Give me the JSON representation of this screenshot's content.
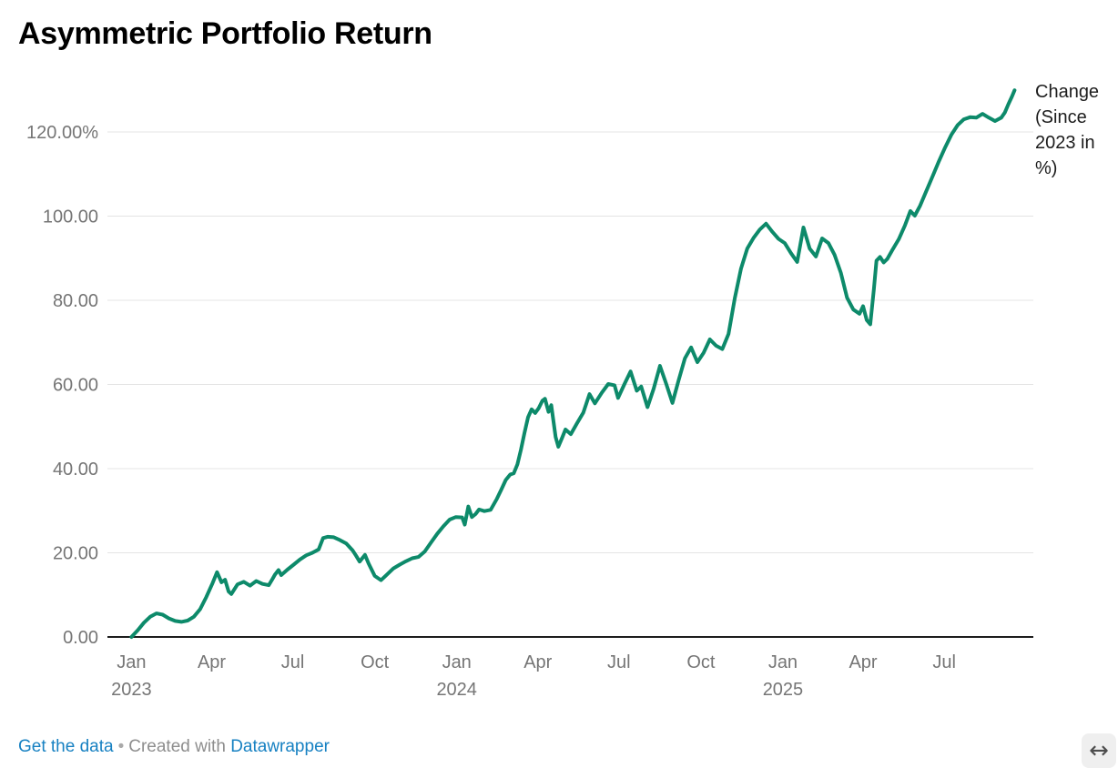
{
  "header": {
    "title": "Asymmetric Portfolio Return"
  },
  "legend": {
    "label": "Change (Since 2023 in %)"
  },
  "footer": {
    "get_data_label": "Get the data",
    "separator": "•",
    "created_with_label": "Created with",
    "brand_label": "Datawrapper",
    "resize_icon": "↔"
  },
  "colors": {
    "line": "#0d8a6a",
    "grid": "#e4e4e4",
    "axis_baseline": "#1c1c1c",
    "tick_label": "#757575",
    "legend_text": "#1c1c1c",
    "link": "#1781c2",
    "footer_text": "#8e8e8e",
    "resize_bg": "#efefef",
    "resize_icon": "#4d4d4d",
    "background": "#ffffff"
  },
  "chart_data": {
    "type": "line",
    "title": "Asymmetric Portfolio Return",
    "series_name": "Change (Since 2023 in %)",
    "xlabel": "",
    "ylabel": "",
    "grid": true,
    "legend_position": "right-of-line-end",
    "ylim": [
      0,
      132
    ],
    "x_domain": [
      "2022-12-05",
      "2025-10-09"
    ],
    "y_ticks": [
      {
        "value": 0,
        "label": "0.00"
      },
      {
        "value": 20,
        "label": "20.00"
      },
      {
        "value": 40,
        "label": "40.00"
      },
      {
        "value": 60,
        "label": "60.00"
      },
      {
        "value": 80,
        "label": "80.00"
      },
      {
        "value": 100,
        "label": "100.00"
      },
      {
        "value": 120,
        "label": "120.00%"
      }
    ],
    "x_ticks": [
      {
        "date": "2023-01-01",
        "label": "Jan",
        "year": "2023"
      },
      {
        "date": "2023-04-01",
        "label": "Apr",
        "year": ""
      },
      {
        "date": "2023-07-01",
        "label": "Jul",
        "year": ""
      },
      {
        "date": "2023-10-01",
        "label": "Oct",
        "year": ""
      },
      {
        "date": "2024-01-01",
        "label": "Jan",
        "year": "2024"
      },
      {
        "date": "2024-04-01",
        "label": "Apr",
        "year": ""
      },
      {
        "date": "2024-07-01",
        "label": "Jul",
        "year": ""
      },
      {
        "date": "2024-10-01",
        "label": "Oct",
        "year": ""
      },
      {
        "date": "2025-01-01",
        "label": "Jan",
        "year": "2025"
      },
      {
        "date": "2025-04-01",
        "label": "Apr",
        "year": ""
      },
      {
        "date": "2025-07-01",
        "label": "Jul",
        "year": ""
      }
    ],
    "points": [
      [
        "2023-01-01",
        0.0
      ],
      [
        "2023-01-08",
        1.6
      ],
      [
        "2023-01-15",
        3.4
      ],
      [
        "2023-01-22",
        4.8
      ],
      [
        "2023-01-29",
        5.6
      ],
      [
        "2023-02-05",
        5.3
      ],
      [
        "2023-02-12",
        4.4
      ],
      [
        "2023-02-19",
        3.8
      ],
      [
        "2023-02-26",
        3.6
      ],
      [
        "2023-03-05",
        3.9
      ],
      [
        "2023-03-12",
        4.8
      ],
      [
        "2023-03-19",
        6.6
      ],
      [
        "2023-03-26",
        9.5
      ],
      [
        "2023-04-02",
        12.8
      ],
      [
        "2023-04-07",
        15.4
      ],
      [
        "2023-04-12",
        13.0
      ],
      [
        "2023-04-16",
        13.6
      ],
      [
        "2023-04-20",
        10.8
      ],
      [
        "2023-04-23",
        10.2
      ],
      [
        "2023-04-30",
        12.5
      ],
      [
        "2023-05-07",
        13.1
      ],
      [
        "2023-05-14",
        12.2
      ],
      [
        "2023-05-21",
        13.3
      ],
      [
        "2023-05-28",
        12.6
      ],
      [
        "2023-06-04",
        12.3
      ],
      [
        "2023-06-08",
        13.7
      ],
      [
        "2023-06-11",
        14.8
      ],
      [
        "2023-06-15",
        15.9
      ],
      [
        "2023-06-18",
        14.7
      ],
      [
        "2023-06-25",
        16.0
      ],
      [
        "2023-07-02",
        17.2
      ],
      [
        "2023-07-09",
        18.4
      ],
      [
        "2023-07-16",
        19.4
      ],
      [
        "2023-07-23",
        20.0
      ],
      [
        "2023-07-30",
        20.8
      ],
      [
        "2023-08-04",
        23.5
      ],
      [
        "2023-08-09",
        23.8
      ],
      [
        "2023-08-16",
        23.7
      ],
      [
        "2023-08-23",
        23.0
      ],
      [
        "2023-08-30",
        22.2
      ],
      [
        "2023-09-06",
        20.6
      ],
      [
        "2023-09-10",
        19.3
      ],
      [
        "2023-09-14",
        17.9
      ],
      [
        "2023-09-20",
        19.5
      ],
      [
        "2023-09-24",
        17.5
      ],
      [
        "2023-10-01",
        14.5
      ],
      [
        "2023-10-08",
        13.5
      ],
      [
        "2023-10-15",
        14.9
      ],
      [
        "2023-10-22",
        16.3
      ],
      [
        "2023-10-29",
        17.2
      ],
      [
        "2023-11-05",
        18.0
      ],
      [
        "2023-11-12",
        18.7
      ],
      [
        "2023-11-19",
        19.0
      ],
      [
        "2023-11-26",
        20.3
      ],
      [
        "2023-12-03",
        22.4
      ],
      [
        "2023-12-10",
        24.5
      ],
      [
        "2023-12-17",
        26.3
      ],
      [
        "2023-12-24",
        27.9
      ],
      [
        "2023-12-31",
        28.5
      ],
      [
        "2024-01-07",
        28.4
      ],
      [
        "2024-01-10",
        26.7
      ],
      [
        "2024-01-14",
        31.0
      ],
      [
        "2024-01-18",
        28.5
      ],
      [
        "2024-01-22",
        29.2
      ],
      [
        "2024-01-26",
        30.3
      ],
      [
        "2024-02-01",
        29.9
      ],
      [
        "2024-02-08",
        30.2
      ],
      [
        "2024-02-15",
        32.8
      ],
      [
        "2024-02-20",
        35.0
      ],
      [
        "2024-02-25",
        37.3
      ],
      [
        "2024-03-01",
        38.6
      ],
      [
        "2024-03-05",
        38.9
      ],
      [
        "2024-03-09",
        41.0
      ],
      [
        "2024-03-13",
        44.5
      ],
      [
        "2024-03-17",
        48.5
      ],
      [
        "2024-03-21",
        52.2
      ],
      [
        "2024-03-25",
        54.1
      ],
      [
        "2024-03-29",
        53.2
      ],
      [
        "2024-04-02",
        54.4
      ],
      [
        "2024-04-06",
        56.1
      ],
      [
        "2024-04-09",
        56.6
      ],
      [
        "2024-04-13",
        53.5
      ],
      [
        "2024-04-16",
        55.1
      ],
      [
        "2024-04-21",
        47.5
      ],
      [
        "2024-04-24",
        45.2
      ],
      [
        "2024-04-28",
        47.2
      ],
      [
        "2024-05-02",
        49.3
      ],
      [
        "2024-05-08",
        48.2
      ],
      [
        "2024-05-15",
        50.8
      ],
      [
        "2024-05-22",
        53.3
      ],
      [
        "2024-05-29",
        57.7
      ],
      [
        "2024-06-04",
        55.5
      ],
      [
        "2024-06-12",
        58.1
      ],
      [
        "2024-06-19",
        60.1
      ],
      [
        "2024-06-26",
        59.8
      ],
      [
        "2024-06-30",
        56.8
      ],
      [
        "2024-07-07",
        60.0
      ],
      [
        "2024-07-14",
        63.1
      ],
      [
        "2024-07-21",
        58.5
      ],
      [
        "2024-07-26",
        59.5
      ],
      [
        "2024-08-02",
        54.6
      ],
      [
        "2024-08-09",
        59.0
      ],
      [
        "2024-08-16",
        64.4
      ],
      [
        "2024-08-23",
        60.2
      ],
      [
        "2024-08-30",
        55.6
      ],
      [
        "2024-09-06",
        61.0
      ],
      [
        "2024-09-13",
        66.2
      ],
      [
        "2024-09-20",
        68.8
      ],
      [
        "2024-09-27",
        65.3
      ],
      [
        "2024-10-04",
        67.5
      ],
      [
        "2024-10-11",
        70.7
      ],
      [
        "2024-10-18",
        69.2
      ],
      [
        "2024-10-25",
        68.4
      ],
      [
        "2024-11-01",
        72.0
      ],
      [
        "2024-11-08",
        80.5
      ],
      [
        "2024-11-15",
        87.5
      ],
      [
        "2024-11-22",
        92.3
      ],
      [
        "2024-11-29",
        94.8
      ],
      [
        "2024-12-06",
        96.8
      ],
      [
        "2024-12-13",
        98.2
      ],
      [
        "2024-12-20",
        96.3
      ],
      [
        "2024-12-27",
        94.6
      ],
      [
        "2025-01-03",
        93.6
      ],
      [
        "2025-01-10",
        91.2
      ],
      [
        "2025-01-17",
        89.1
      ],
      [
        "2025-01-24",
        97.3
      ],
      [
        "2025-01-31",
        92.3
      ],
      [
        "2025-02-07",
        90.4
      ],
      [
        "2025-02-14",
        94.7
      ],
      [
        "2025-02-21",
        93.6
      ],
      [
        "2025-02-28",
        90.8
      ],
      [
        "2025-03-07",
        86.5
      ],
      [
        "2025-03-14",
        80.6
      ],
      [
        "2025-03-21",
        77.8
      ],
      [
        "2025-03-28",
        76.8
      ],
      [
        "2025-04-01",
        78.6
      ],
      [
        "2025-04-05",
        75.3
      ],
      [
        "2025-04-09",
        74.3
      ],
      [
        "2025-04-13",
        82.5
      ],
      [
        "2025-04-16",
        89.4
      ],
      [
        "2025-04-20",
        90.3
      ],
      [
        "2025-04-24",
        89.0
      ],
      [
        "2025-04-28",
        89.8
      ],
      [
        "2025-05-04",
        92.0
      ],
      [
        "2025-05-11",
        94.5
      ],
      [
        "2025-05-18",
        97.8
      ],
      [
        "2025-05-24",
        101.2
      ],
      [
        "2025-05-29",
        100.1
      ],
      [
        "2025-06-04",
        102.5
      ],
      [
        "2025-06-11",
        106.0
      ],
      [
        "2025-06-18",
        109.5
      ],
      [
        "2025-06-25",
        113.0
      ],
      [
        "2025-07-02",
        116.3
      ],
      [
        "2025-07-09",
        119.3
      ],
      [
        "2025-07-16",
        121.6
      ],
      [
        "2025-07-23",
        123.0
      ],
      [
        "2025-07-30",
        123.5
      ],
      [
        "2025-08-06",
        123.4
      ],
      [
        "2025-08-13",
        124.3
      ],
      [
        "2025-08-20",
        123.4
      ],
      [
        "2025-08-27",
        122.6
      ],
      [
        "2025-09-03",
        123.4
      ],
      [
        "2025-09-07",
        124.6
      ],
      [
        "2025-09-11",
        126.6
      ],
      [
        "2025-09-15",
        128.4
      ],
      [
        "2025-09-18",
        129.9
      ]
    ]
  }
}
